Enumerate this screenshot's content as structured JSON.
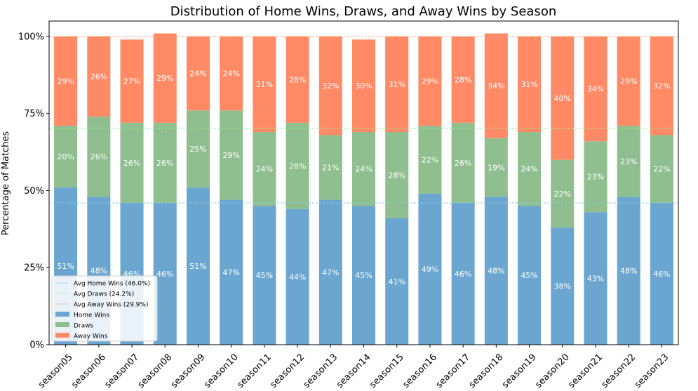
{
  "chart_data": {
    "type": "bar",
    "stacked": true,
    "title": "Distribution of Home Wins, Draws, and Away Wins by Season",
    "xlabel": "",
    "ylabel": "Percentage of Matches",
    "ylim": [
      0,
      105
    ],
    "yticks": [
      0,
      25,
      50,
      75,
      100
    ],
    "ytick_labels": [
      "0%",
      "25%",
      "50%",
      "75%",
      "100%"
    ],
    "grid": false,
    "legend_position": "bottom-left",
    "categories": [
      "season05",
      "season06",
      "season07",
      "season08",
      "season09",
      "season10",
      "season11",
      "season12",
      "season13",
      "season14",
      "season15",
      "season16",
      "season17",
      "season18",
      "season19",
      "season20",
      "season21",
      "season22",
      "season23"
    ],
    "series": [
      {
        "name": "Home Wins",
        "color": "#6aa6cf",
        "values": [
          51,
          48,
          46,
          46,
          51,
          47,
          45,
          44,
          47,
          45,
          41,
          49,
          46,
          48,
          45,
          38,
          43,
          48,
          46
        ]
      },
      {
        "name": "Draws",
        "color": "#8fbe8f",
        "values": [
          20,
          26,
          26,
          26,
          25,
          29,
          24,
          28,
          21,
          24,
          28,
          22,
          26,
          19,
          24,
          22,
          23,
          23,
          22
        ]
      },
      {
        "name": "Away Wins",
        "color": "#ff8a65",
        "values": [
          29,
          26,
          27,
          29,
          24,
          24,
          31,
          28,
          32,
          30,
          31,
          29,
          28,
          34,
          31,
          40,
          34,
          29,
          32
        ]
      }
    ],
    "reference_lines": [
      {
        "name": "Avg Home Wins (46.0%)",
        "value": 46.0,
        "color": "#87ceeb"
      },
      {
        "name": "Avg Draws (24.2%)",
        "value": 70.2,
        "color": "#90ee90"
      },
      {
        "name": "Avg Away Wins (29.9%)",
        "value": 100.0,
        "color": "#ffa07a"
      }
    ]
  }
}
